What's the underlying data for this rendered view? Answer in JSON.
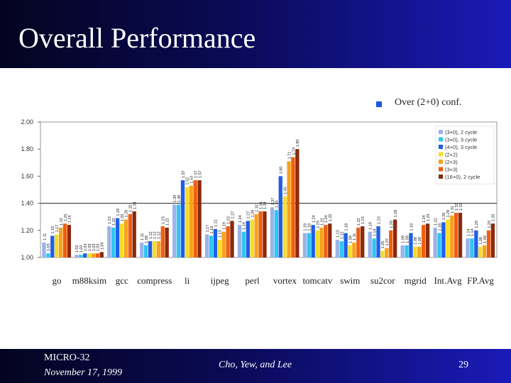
{
  "slide": {
    "title": "Overall Performance",
    "note": "Over (2+0) conf.",
    "footer_left_1": "MICRO-32",
    "footer_left_2": "November 17, 1999",
    "footer_center": "Cho, Yew, and Lee",
    "page_number": "29"
  },
  "chart_data": {
    "type": "bar",
    "title": "",
    "xlabel": "",
    "ylabel": "",
    "ylim": [
      1.0,
      2.0
    ],
    "yticks": [
      "1.00",
      "1.20",
      "1.40",
      "1.60",
      "1.80",
      "2.00"
    ],
    "reference_line": 1.4,
    "categories": [
      "go",
      "m88ksim",
      "gcc",
      "compress",
      "li",
      "ijpeg",
      "perl",
      "vortex",
      "tomcatv",
      "swim",
      "su2cor",
      "mgrid",
      "Int.Avg",
      "FP.Avg"
    ],
    "series": [
      {
        "name": "(3+0), 2 cycle",
        "color": "#9bb3e8",
        "values": [
          1.11,
          1.02,
          1.23,
          1.11,
          1.39,
          1.17,
          1.24,
          1.37,
          1.18,
          1.13,
          1.19,
          1.09,
          1.22,
          1.14
        ]
      },
      {
        "name": "(3+0), 3 cycle",
        "color": "#2ec6f2",
        "values": [
          1.03,
          1.02,
          1.22,
          1.09,
          1.39,
          1.16,
          1.19,
          1.35,
          1.18,
          1.12,
          1.14,
          1.09,
          1.18,
          1.14
        ]
      },
      {
        "name": "(4+0), 3 cycle",
        "color": "#1f5ee8",
        "values": [
          1.16,
          1.03,
          1.29,
          1.12,
          1.57,
          1.21,
          1.27,
          1.6,
          1.24,
          1.18,
          1.23,
          1.18,
          1.26,
          1.2
        ]
      },
      {
        "name": "(2+2)",
        "color": "#f5dc28",
        "values": [
          1.17,
          1.03,
          1.25,
          1.12,
          1.52,
          1.13,
          1.28,
          1.45,
          1.2,
          1.09,
          1.05,
          1.08,
          1.28,
          1.08
        ]
      },
      {
        "name": "(2+3)",
        "color": "#f6a21c",
        "values": [
          1.22,
          1.03,
          1.28,
          1.12,
          1.53,
          1.19,
          1.32,
          1.71,
          1.22,
          1.11,
          1.07,
          1.08,
          1.31,
          1.09
        ]
      },
      {
        "name": "(3+3)",
        "color": "#ef5e0e",
        "values": [
          1.25,
          1.03,
          1.32,
          1.23,
          1.57,
          1.23,
          1.34,
          1.74,
          1.24,
          1.22,
          1.2,
          1.24,
          1.33,
          1.2
        ]
      },
      {
        "name": "(16+0), 2 cycle",
        "color": "#8a2a0e",
        "values": [
          1.24,
          1.04,
          1.34,
          1.22,
          1.57,
          1.27,
          1.34,
          1.8,
          1.25,
          1.23,
          1.28,
          1.25,
          1.33,
          1.25
        ]
      }
    ]
  }
}
